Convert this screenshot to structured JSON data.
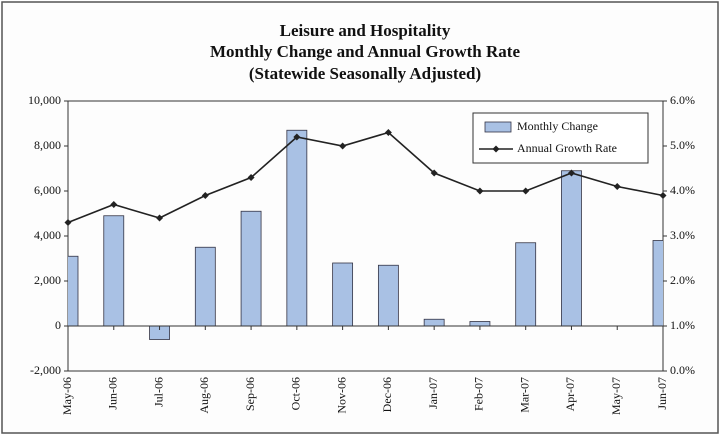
{
  "chart_data": {
    "type": "bar",
    "title": [
      "Leisure and Hospitality",
      "Monthly Change and Annual Growth Rate",
      "(Statewide Seasonally Adjusted)"
    ],
    "categories": [
      "May-06",
      "Jun-06",
      "Jul-06",
      "Aug-06",
      "Sep-06",
      "Oct-06",
      "Nov-06",
      "Dec-06",
      "Jan-07",
      "Feb-07",
      "Mar-07",
      "Apr-07",
      "May-07",
      "Jun-07"
    ],
    "series": [
      {
        "name": "Monthly Change",
        "type": "bar",
        "color": "#a9c1e4",
        "values": [
          3100,
          4900,
          -600,
          3500,
          5100,
          8700,
          2800,
          2700,
          300,
          200,
          3700,
          6900,
          0,
          3800
        ]
      },
      {
        "name": "Annual Growth Rate",
        "type": "line",
        "axis": "y2",
        "color": "#222222",
        "values": [
          3.3,
          3.7,
          3.4,
          3.9,
          4.3,
          5.2,
          5.0,
          5.3,
          4.4,
          4.0,
          4.0,
          4.4,
          4.1,
          3.9
        ]
      }
    ],
    "ylim": [
      -2000,
      10000
    ],
    "yticks": [
      {
        "value": -2000,
        "label": "-2,000"
      },
      0,
      {
        "value": 2000,
        "label": "2,000"
      },
      {
        "value": 4000,
        "label": "4,000"
      },
      {
        "value": 6000,
        "label": "6,000"
      },
      {
        "value": 8000,
        "label": "8,000"
      },
      {
        "value": 10000,
        "label": "10,000"
      }
    ],
    "y2lim": [
      0,
      6
    ],
    "y2ticks": [
      {
        "value": 0,
        "label": "0.0%"
      },
      {
        "value": 1,
        "label": "1.0%"
      },
      {
        "value": 2,
        "label": "2.0%"
      },
      {
        "value": 3,
        "label": "3.0%"
      },
      {
        "value": 4,
        "label": "4.0%"
      },
      {
        "value": 5,
        "label": "5.0%"
      },
      {
        "value": 6,
        "label": "6.0%"
      }
    ],
    "legend": "upper right"
  }
}
